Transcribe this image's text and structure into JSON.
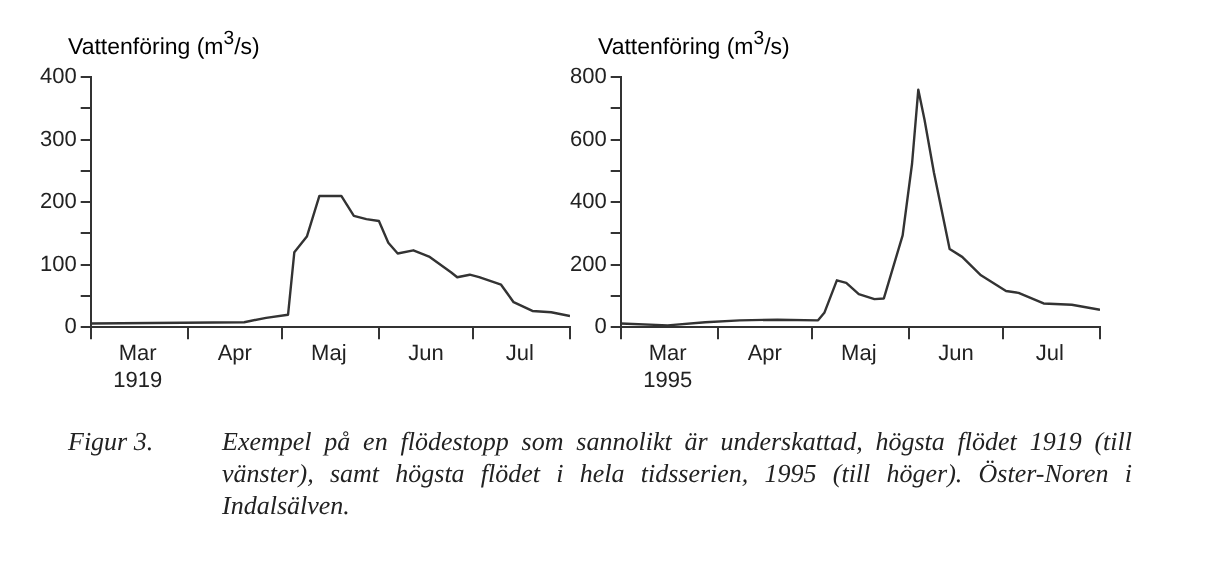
{
  "chart_data": [
    {
      "type": "line",
      "ylabel": "Vattenföring (m$^{3}$/s)",
      "xlim": [
        "1919-03-01",
        "1919-08-01"
      ],
      "ylim": [
        0,
        400
      ],
      "yticks": [
        0,
        {
          "value": 50,
          "label": null
        },
        100,
        {
          "value": 150,
          "label": null
        },
        200,
        {
          "value": 250,
          "label": null
        },
        300,
        {
          "value": 350,
          "label": null
        },
        400
      ],
      "xticks": [
        {
          "value": "1919-03-01",
          "label": null
        },
        {
          "value": "1919-03-16",
          "label": "Mar\n1919"
        },
        {
          "value": "1919-04-01",
          "label": null
        },
        {
          "value": "1919-04-16",
          "label": "Apr"
        },
        {
          "value": "1919-05-01",
          "label": null
        },
        {
          "value": "1919-05-16",
          "label": "Maj"
        },
        {
          "value": "1919-06-01",
          "label": null
        },
        {
          "value": "1919-06-16",
          "label": "Jun"
        },
        {
          "value": "1919-07-01",
          "label": null
        },
        {
          "value": "1919-07-16",
          "label": "Jul"
        },
        {
          "value": "1919-08-01",
          "label": null
        }
      ],
      "grid": false,
      "legend": false,
      "annotations": [
        "Figur 3.",
        "Exempel på en flödestopp som sannolikt är underskattad, högsta flödet 1919 (till vänster), samt högsta flödet i hela tidsserien, 1995 (till höger). Öster-Noren i Indalsälven."
      ],
      "series": [
        {
          "color": "#333333",
          "x": [
            "1919-03-01",
            "1919-04-19",
            "1919-04-26",
            "1919-05-03",
            "1919-05-05",
            "1919-05-09",
            "1919-05-13",
            "1919-05-20",
            "1919-05-24",
            "1919-05-28",
            "1919-06-01",
            "1919-06-04",
            "1919-06-07",
            "1919-06-12",
            "1919-06-17",
            "1919-06-24",
            "1919-06-26",
            "1919-06-30",
            "1919-07-03",
            "1919-07-10",
            "1919-07-14",
            "1919-07-20",
            "1919-07-26",
            "1919-08-01"
          ],
          "values": [
            6,
            8,
            15,
            20,
            120,
            145,
            210,
            210,
            178,
            173,
            170,
            135,
            118,
            123,
            113,
            88,
            80,
            84,
            80,
            68,
            40,
            26,
            24,
            18
          ]
        }
      ]
    },
    {
      "type": "line",
      "ylabel": "Vattenföring (m$^{3}$/s)",
      "xlim": [
        "1995-03-01",
        "1995-08-01"
      ],
      "ylim": [
        0,
        800
      ],
      "yticks": [
        0,
        {
          "value": 100,
          "label": null
        },
        200,
        {
          "value": 300,
          "label": null
        },
        400,
        {
          "value": 500,
          "label": null
        },
        600,
        {
          "value": 700,
          "label": null
        },
        800
      ],
      "xticks": [
        {
          "value": "1995-03-01",
          "label": null
        },
        {
          "value": "1995-03-16",
          "label": "Mar\n1995"
        },
        {
          "value": "1995-04-01",
          "label": null
        },
        {
          "value": "1995-04-16",
          "label": "Apr"
        },
        {
          "value": "1995-05-01",
          "label": null
        },
        {
          "value": "1995-05-16",
          "label": "Maj"
        },
        {
          "value": "1995-06-01",
          "label": null
        },
        {
          "value": "1995-06-16",
          "label": "Jun"
        },
        {
          "value": "1995-07-01",
          "label": null
        },
        {
          "value": "1995-07-16",
          "label": "Jul"
        },
        {
          "value": "1995-08-01",
          "label": null
        }
      ],
      "grid": false,
      "legend": false,
      "series": [
        {
          "color": "#333333",
          "x": [
            "1995-03-01",
            "1995-03-16",
            "1995-03-28",
            "1995-04-08",
            "1995-04-20",
            "1995-05-03",
            "1995-05-05",
            "1995-05-09",
            "1995-05-12",
            "1995-05-16",
            "1995-05-21",
            "1995-05-24",
            "1995-05-30",
            "1995-06-02",
            "1995-06-04",
            "1995-06-06",
            "1995-06-09",
            "1995-06-14",
            "1995-06-18",
            "1995-06-24",
            "1995-07-02",
            "1995-07-06",
            "1995-07-14",
            "1995-07-23",
            "1995-08-01"
          ],
          "values": [
            12,
            6,
            16,
            22,
            24,
            22,
            46,
            150,
            142,
            106,
            90,
            92,
            294,
            523,
            760,
            663,
            494,
            250,
            225,
            166,
            116,
            110,
            76,
            72,
            56
          ]
        }
      ]
    }
  ]
}
